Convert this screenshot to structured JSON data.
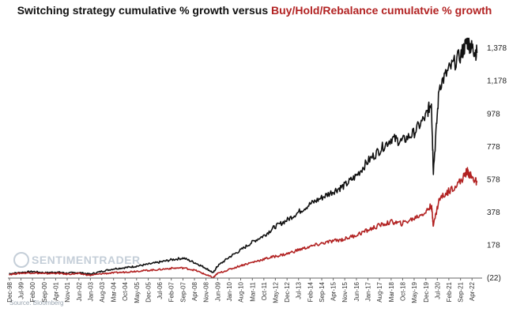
{
  "chart_data": {
    "type": "line",
    "title_part1": "Switching strategy cumulative % growth versus ",
    "title_part2": "Buy/Hold/Rebalance cumulatvie % growth",
    "ylim": [
      -22,
      1528
    ],
    "y_ticks": [
      "1,378",
      "1,178",
      "978",
      "778",
      "578",
      "378",
      "178",
      "(22)"
    ],
    "y_tick_values": [
      1378,
      1178,
      978,
      778,
      578,
      378,
      178,
      -22
    ],
    "grid": false,
    "x_ticks": [
      "Dec-98",
      "Jul-99",
      "Feb-00",
      "Sep-00",
      "Apr-01",
      "Nov-01",
      "Jun-02",
      "Jan-03",
      "Aug-03",
      "Mar-04",
      "Oct-04",
      "May-05",
      "Dec-05",
      "Jul-06",
      "Feb-07",
      "Sep-07",
      "Apr-08",
      "Nov-08",
      "Jun-09",
      "Jan-10",
      "Aug-10",
      "Mar-11",
      "Oct-11",
      "May-12",
      "Dec-12",
      "Jul-13",
      "Feb-14",
      "Sep-14",
      "Apr-15",
      "Nov-15",
      "Jun-16",
      "Jan-17",
      "Aug-17",
      "Mar-18",
      "Oct-18",
      "May-19",
      "Dec-19",
      "Jul-20",
      "Feb-21",
      "Sep-21",
      "Apr-22"
    ],
    "x_tick_dates": [
      1998.92,
      1999.5,
      2000.08,
      2000.67,
      2001.25,
      2001.83,
      2002.42,
      2003.0,
      2003.58,
      2004.17,
      2004.75,
      2005.33,
      2005.92,
      2006.5,
      2007.08,
      2007.67,
      2008.25,
      2008.83,
      2009.42,
      2010.0,
      2010.58,
      2011.17,
      2011.75,
      2012.33,
      2012.92,
      2013.5,
      2014.08,
      2014.67,
      2015.25,
      2015.83,
      2016.42,
      2017.0,
      2017.58,
      2018.17,
      2018.75,
      2019.33,
      2019.92,
      2020.5,
      2021.08,
      2021.67,
      2022.25
    ],
    "series": [
      {
        "color": "#111111",
        "x": [
          1998.9,
          1999.5,
          2000.1,
          2000.7,
          2001.3,
          2001.8,
          2002.4,
          2003.0,
          2003.6,
          2004.2,
          2004.8,
          2005.3,
          2005.9,
          2006.5,
          2007.1,
          2007.7,
          2008.3,
          2008.8,
          2009.2,
          2009.4,
          2010.0,
          2010.6,
          2011.2,
          2011.8,
          2012.3,
          2012.9,
          2013.5,
          2014.1,
          2014.7,
          2015.3,
          2015.8,
          2016.4,
          2017.0,
          2017.6,
          2018.2,
          2018.7,
          2019.3,
          2019.9,
          2020.2,
          2020.3,
          2020.6,
          2021.1,
          2021.7,
          2022.0,
          2022.25,
          2022.5
        ],
        "y": [
          5,
          12,
          18,
          10,
          15,
          8,
          12,
          2,
          20,
          35,
          42,
          50,
          62,
          75,
          90,
          100,
          70,
          40,
          10,
          50,
          105,
          150,
          200,
          240,
          290,
          330,
          380,
          430,
          470,
          510,
          540,
          600,
          690,
          760,
          830,
          810,
          860,
          960,
          1050,
          630,
          1150,
          1250,
          1340,
          1420,
          1380,
          1350
        ]
      },
      {
        "color": "#b22222",
        "x": [
          1998.9,
          1999.5,
          2000.1,
          2000.7,
          2001.3,
          2001.8,
          2002.4,
          2003.0,
          2003.6,
          2004.2,
          2004.8,
          2005.3,
          2005.9,
          2006.5,
          2007.1,
          2007.7,
          2008.3,
          2008.8,
          2009.2,
          2009.4,
          2010.0,
          2010.6,
          2011.2,
          2011.8,
          2012.3,
          2012.9,
          2013.5,
          2014.1,
          2014.7,
          2015.3,
          2015.8,
          2016.4,
          2017.0,
          2017.6,
          2018.2,
          2018.7,
          2019.3,
          2019.9,
          2020.2,
          2020.3,
          2020.6,
          2021.1,
          2021.7,
          2022.0,
          2022.25,
          2022.5
        ],
        "y": [
          0,
          8,
          10,
          5,
          8,
          2,
          5,
          -5,
          5,
          10,
          15,
          20,
          25,
          30,
          38,
          40,
          25,
          0,
          -20,
          5,
          30,
          55,
          75,
          95,
          110,
          125,
          150,
          170,
          190,
          205,
          215,
          240,
          270,
          300,
          320,
          310,
          340,
          380,
          420,
          300,
          460,
          510,
          570,
          630,
          590,
          560
        ]
      }
    ]
  },
  "watermark": {
    "line1": "SENTIMENTRADER",
    "source": "Source: Bloomberg"
  }
}
